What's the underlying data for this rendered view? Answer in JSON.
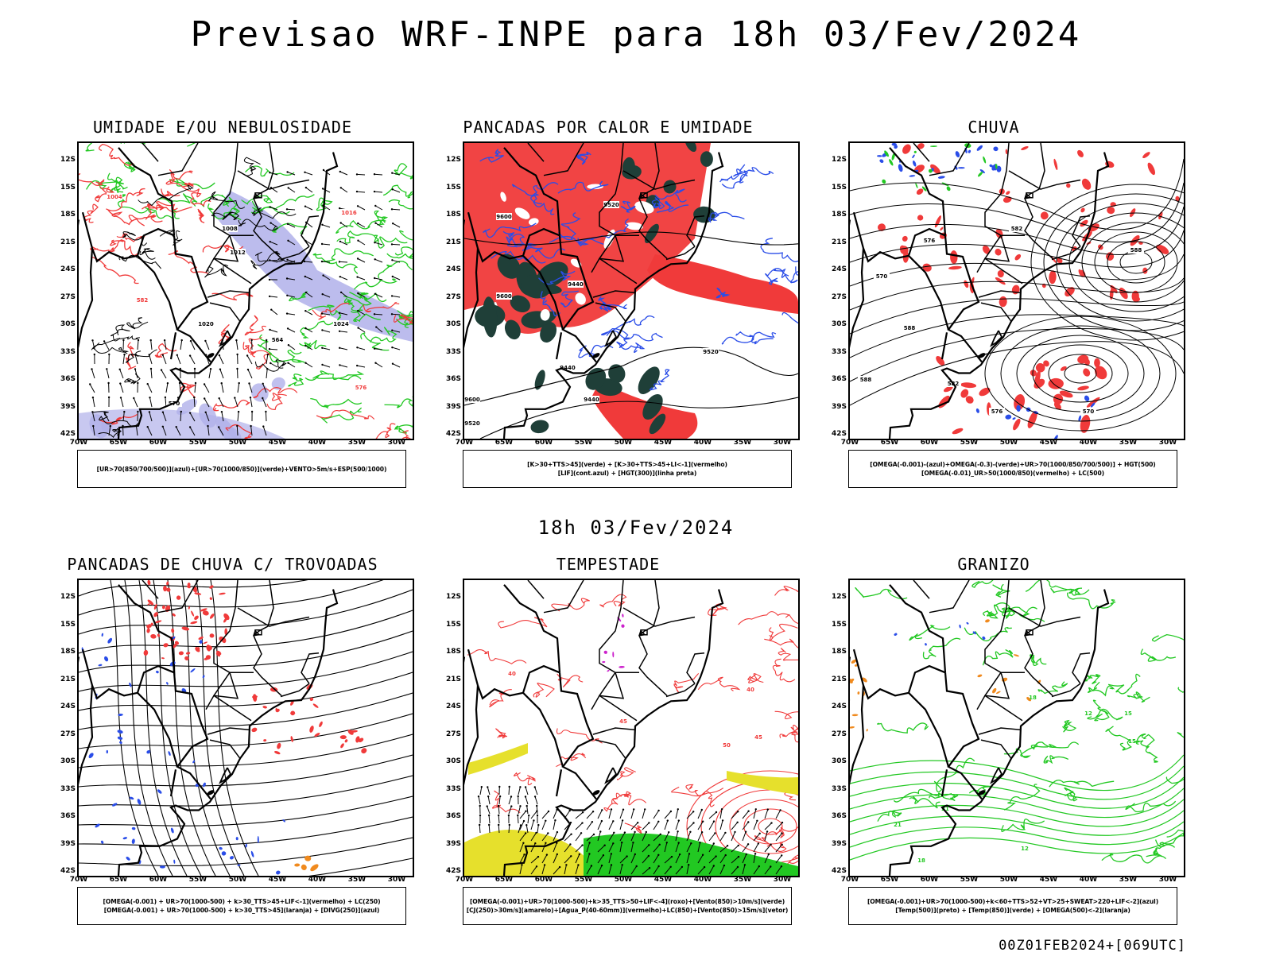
{
  "title": "Previsao WRF-INPE  para 18h 03/Fev/2024",
  "subtitle": "18h 03/Fev/2024",
  "footer": "00Z01FEB2024+[069UTC]",
  "axes": {
    "lat_labels": [
      "12S",
      "15S",
      "18S",
      "21S",
      "24S",
      "27S",
      "30S",
      "33S",
      "36S",
      "39S",
      "42S"
    ],
    "lon_labels": [
      "70W",
      "65W",
      "60W",
      "55W",
      "50W",
      "45W",
      "40W",
      "35W",
      "30W"
    ]
  },
  "colors": {
    "red": "#f03a3a",
    "green": "#22c822",
    "blue": "#2a4de8",
    "lavender": "#b0b0ea",
    "dark_green": "#1f3f38",
    "yellow": "#e6e02c",
    "orange": "#f08a1e",
    "magenta": "#cc22cc",
    "black": "#000000"
  },
  "panels": [
    {
      "title": "UMIDADE E/OU NEBULOSIDADE",
      "legend": [
        "[UR>70(850/700/500)](azul)+[UR>70(1000/850)](verde)+VENTO>5m/s+ESP(500/1000)"
      ],
      "contour_labels": [
        "1004",
        "1008",
        "1012",
        "1016",
        "1020",
        "1024",
        "576",
        "570",
        "564",
        "582"
      ]
    },
    {
      "title": "PANCADAS POR CALOR E UMIDADE",
      "legend": [
        "[K>30+TTS>45](verde) + [K>30+TTS>45+LI<-1](vermelho)",
        "[LIF](cont.azul) + [HGT(300)](linha preta)"
      ],
      "contour_labels": [
        "9600",
        "9520",
        "9440"
      ]
    },
    {
      "title": "CHUVA",
      "legend": [
        "[OMEGA(-0.001)-(azul)+OMEGA(-0.3)-(verde)+UR>70(1000/850/700/500)] + HGT(500)",
        "[OMEGA(-0.01)_UR>50(1000/850)(vermelho) + LC(500)"
      ],
      "contour_labels": [
        "588",
        "582",
        "576",
        "570"
      ]
    },
    {
      "title": "PANCADAS DE CHUVA C/ TROVOADAS",
      "legend": [
        "[OMEGA(-0.001) + UR>70(1000-500) + k>30_TTS>45+LIF<-1](vermelho) + LC(250)",
        "[OMEGA(-0.001) + UR>70(1000-500) + k>30_TTS>45](laranja) + [DIVG(250)](azul)"
      ],
      "contour_labels": []
    },
    {
      "title": "TEMPESTADE",
      "legend": [
        "[OMEGA(-0.001)+UR>70(1000-500)+k>35_TTS>50+LIF<-4](roxo)+[Vento(850)>10m/s](verde)",
        "[CJ(250)>30m/s](amarelo)+[Agua_P(40-60mm)](vermelho)+LC(850)+[Vento(850)>15m/s](vetor)"
      ],
      "contour_labels": [
        "40",
        "45",
        "50"
      ]
    },
    {
      "title": "GRANIZO",
      "legend": [
        "[OMEGA(-0.001)+UR>70(1000-500)+k<60+TTS>52+VT>25+SWEAT>220+LIF<-2](azul)",
        "[Temp(500)](preto) + [Temp(850)](verde) + [OMEGA(500)<-2](laranja)"
      ],
      "contour_labels": [
        "12",
        "15",
        "18",
        "21"
      ]
    }
  ]
}
